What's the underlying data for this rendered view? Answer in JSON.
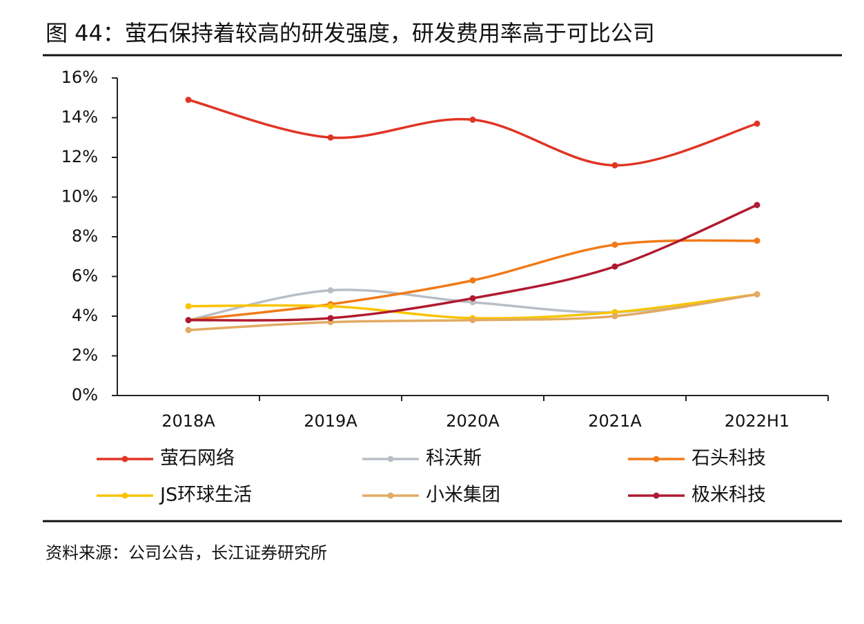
{
  "chart_data": {
    "type": "line",
    "title": "图 44：萤石保持着较高的研发强度，研发费用率高于可比公司",
    "source": "资料来源：公司公告，长江证券研究所",
    "categories": [
      "2018A",
      "2019A",
      "2020A",
      "2021A",
      "2022H1"
    ],
    "ylim": [
      0,
      16
    ],
    "yticks": [
      {
        "value": 0,
        "label": "0%"
      },
      {
        "value": 2,
        "label": "2%"
      },
      {
        "value": 4,
        "label": "4%"
      },
      {
        "value": 6,
        "label": "6%"
      },
      {
        "value": 8,
        "label": "8%"
      },
      {
        "value": 10,
        "label": "10%"
      },
      {
        "value": 12,
        "label": "12%"
      },
      {
        "value": 14,
        "label": "14%"
      },
      {
        "value": 16,
        "label": "16%"
      }
    ],
    "smooth": true,
    "series": [
      {
        "name": "萤石网络",
        "color": "#e03424",
        "values": [
          14.9,
          13.0,
          13.9,
          11.6,
          13.7
        ]
      },
      {
        "name": "科沃斯",
        "color": "#b9bec6",
        "values": [
          3.8,
          5.3,
          4.7,
          4.2,
          5.1
        ]
      },
      {
        "name": "石头科技",
        "color": "#f07a18",
        "values": [
          3.8,
          4.6,
          5.8,
          7.6,
          7.8
        ]
      },
      {
        "name": "JS环球生活",
        "color": "#f8c400",
        "values": [
          4.5,
          4.5,
          3.9,
          4.2,
          5.1
        ]
      },
      {
        "name": "小米集团",
        "color": "#e2aa62",
        "values": [
          3.3,
          3.7,
          3.8,
          4.0,
          5.1
        ]
      },
      {
        "name": "极米科技",
        "color": "#b01a30",
        "values": [
          3.8,
          3.9,
          4.9,
          6.5,
          9.6
        ]
      }
    ]
  }
}
